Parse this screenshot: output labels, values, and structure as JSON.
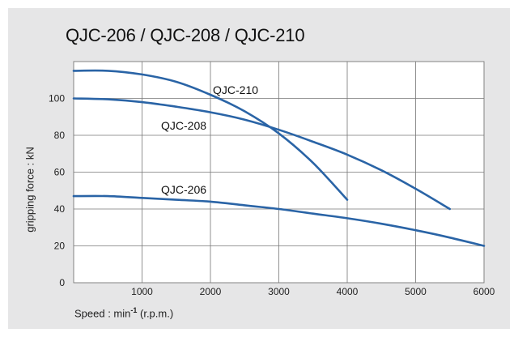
{
  "chart_data": {
    "type": "line",
    "title": "QJC-206 / QJC-208 / QJC-210",
    "xlabel": "Speed : min⁻¹ (r.p.m.)",
    "ylabel": "gripping force : kN",
    "xlim": [
      0,
      6000
    ],
    "ylim": [
      0,
      120
    ],
    "x_ticks": [
      0,
      1000,
      2000,
      3000,
      4000,
      5000,
      6000
    ],
    "y_ticks": [
      0,
      20,
      40,
      60,
      80,
      100
    ],
    "x_tick_labels": [
      "",
      "1000",
      "2000",
      "3000",
      "4000",
      "5000",
      "6000"
    ],
    "y_tick_labels": [
      "0",
      "20",
      "40",
      "60",
      "80",
      "100"
    ],
    "grid": true,
    "series": [
      {
        "name": "QJC-210",
        "color": "#2a64a6",
        "x": [
          0,
          500,
          1000,
          1500,
          2000,
          2500,
          3000,
          3500,
          4000
        ],
        "y": [
          115,
          115,
          113,
          109,
          102,
          93,
          81,
          65,
          45
        ]
      },
      {
        "name": "QJC-208",
        "color": "#2a64a6",
        "x": [
          0,
          500,
          1000,
          1500,
          2000,
          2500,
          3000,
          3500,
          4000,
          4500,
          5000,
          5500
        ],
        "y": [
          100,
          99.5,
          98,
          95.5,
          92.5,
          88.5,
          83,
          76.5,
          69.5,
          61,
          51,
          40
        ]
      },
      {
        "name": "QJC-206",
        "color": "#2a64a6",
        "x": [
          0,
          500,
          1000,
          1500,
          2000,
          2500,
          3000,
          3500,
          4000,
          4500,
          5000,
          5500,
          6000
        ],
        "y": [
          47,
          47,
          46,
          45,
          44,
          42,
          40,
          37.5,
          35,
          32,
          28.5,
          24.5,
          20
        ]
      }
    ]
  }
}
